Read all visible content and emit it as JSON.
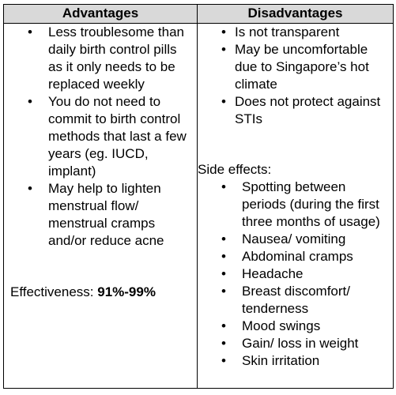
{
  "table": {
    "headers": [
      "Advantages",
      "Disadvantages"
    ],
    "advantages": [
      "Less troublesome than daily birth control pills as it only needs to be replaced weekly",
      "You do not need to commit to birth control methods that last a few years (eg. IUCD, implant)",
      "May help to lighten menstrual flow/ menstrual cramps and/or reduce acne"
    ],
    "effectiveness_label": "Effectiveness: ",
    "effectiveness_value": "91%-99%",
    "disadvantages": [
      "Is not transparent",
      "May be uncomfortable due to Singapore’s hot climate",
      "Does not protect against STIs"
    ],
    "side_effects_label": "Side effects:",
    "side_effects": [
      "Spotting between periods (during the first three months of usage)",
      "Nausea/ vomiting",
      "Abdominal cramps",
      "Headache",
      "Breast discomfort/ tenderness",
      "Mood swings",
      "Gain/ loss in weight",
      "Skin irritation"
    ]
  }
}
